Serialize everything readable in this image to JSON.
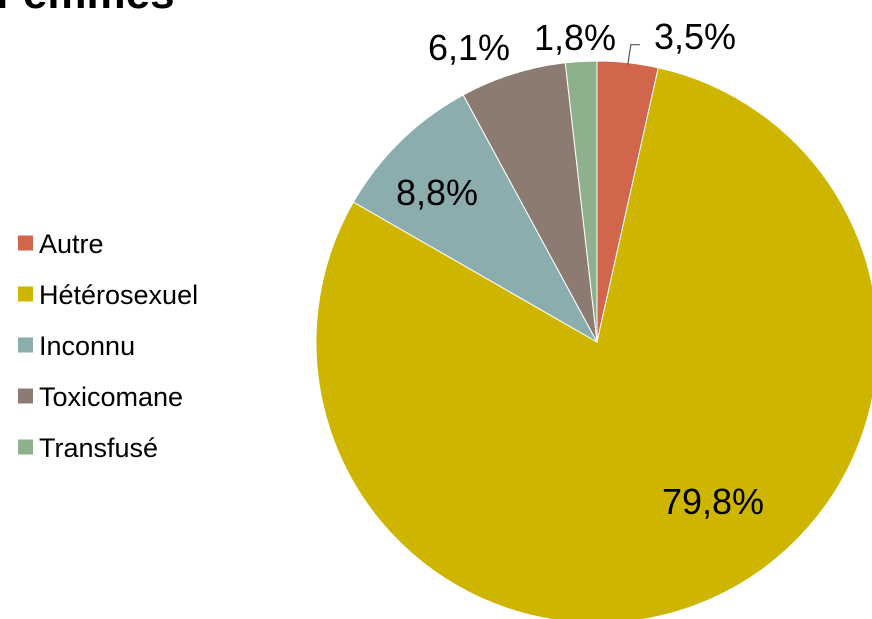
{
  "chart_data": {
    "type": "pie",
    "title": "Femmes",
    "legend_position": "left",
    "slices": [
      {
        "label": "Autre",
        "value": 3.5,
        "display": "3,5%",
        "color": "#D2664D"
      },
      {
        "label": "Hétérosexuel",
        "value": 79.8,
        "display": "79,8%",
        "color": "#CDB500"
      },
      {
        "label": "Inconnu",
        "value": 8.8,
        "display": "8,8%",
        "color": "#8BADAE"
      },
      {
        "label": "Toxicomane",
        "value": 6.1,
        "display": "6,1%",
        "color": "#8C7B70"
      },
      {
        "label": "Transfusé",
        "value": 1.8,
        "display": "1,8%",
        "color": "#8FB08C"
      }
    ]
  }
}
